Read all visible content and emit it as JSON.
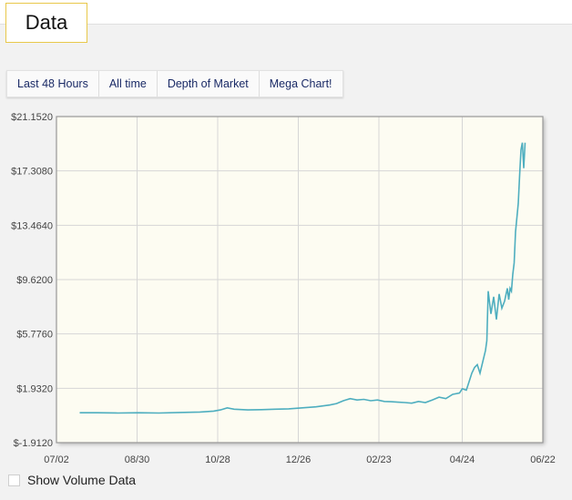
{
  "tab": {
    "label": "Data"
  },
  "range_buttons": [
    {
      "label": "Last 48 Hours"
    },
    {
      "label": "All time"
    },
    {
      "label": "Depth of Market"
    },
    {
      "label": "Mega Chart!"
    }
  ],
  "volume_toggle": {
    "label": "Show Volume Data",
    "checked": false
  },
  "chart_data": {
    "type": "line",
    "title": "",
    "xlabel": "",
    "ylabel": "",
    "grid": true,
    "colors": {
      "line": "#4eaebf",
      "plot_bg": "#fdfcf2",
      "grid": "#d6d6d6"
    },
    "y_ticks": [
      "$21.1520",
      "$17.3080",
      "$13.4640",
      "$9.6200",
      "$5.7760",
      "$1.9320",
      "$-1.9120"
    ],
    "y_tick_values": [
      21.152,
      17.308,
      13.464,
      9.62,
      5.776,
      1.932,
      -1.912
    ],
    "ylim": [
      -1.912,
      21.152
    ],
    "x_ticks": [
      "07/02",
      "08/30",
      "10/28",
      "12/26",
      "02/23",
      "04/24",
      "06/22"
    ],
    "x_tick_days": [
      0,
      59,
      118,
      177,
      236,
      297,
      356
    ],
    "xlim": [
      0,
      356
    ],
    "series": [
      {
        "x": [
          17,
          30,
          45,
          60,
          75,
          90,
          105,
          115,
          120,
          125,
          130,
          140,
          150,
          160,
          170,
          180,
          190,
          200,
          205,
          210,
          215,
          220,
          225,
          230,
          235,
          240,
          245,
          250,
          255,
          260,
          265,
          270,
          275,
          280,
          285,
          290,
          295,
          297,
          300,
          302,
          304,
          306,
          308,
          310,
          312,
          314,
          315,
          316,
          318,
          320,
          322,
          324,
          326,
          328,
          330,
          331,
          332,
          333,
          334,
          335,
          336,
          337,
          338,
          339,
          340,
          341,
          342,
          343
        ],
        "y": [
          0.2,
          0.2,
          0.18,
          0.2,
          0.18,
          0.22,
          0.25,
          0.32,
          0.4,
          0.55,
          0.45,
          0.4,
          0.42,
          0.45,
          0.48,
          0.55,
          0.62,
          0.75,
          0.85,
          1.05,
          1.2,
          1.1,
          1.15,
          1.05,
          1.1,
          1.0,
          0.98,
          0.95,
          0.92,
          0.88,
          1.0,
          0.92,
          1.1,
          1.3,
          1.2,
          1.5,
          1.6,
          1.9,
          1.8,
          2.4,
          3.0,
          3.4,
          3.6,
          3.0,
          3.8,
          4.6,
          5.3,
          8.8,
          7.2,
          8.4,
          6.8,
          8.6,
          7.6,
          8.1,
          9.0,
          8.2,
          9.0,
          8.8,
          10.0,
          10.8,
          13.0,
          14.0,
          15.0,
          17.0,
          18.8,
          19.3,
          17.5,
          19.3
        ]
      }
    ]
  }
}
